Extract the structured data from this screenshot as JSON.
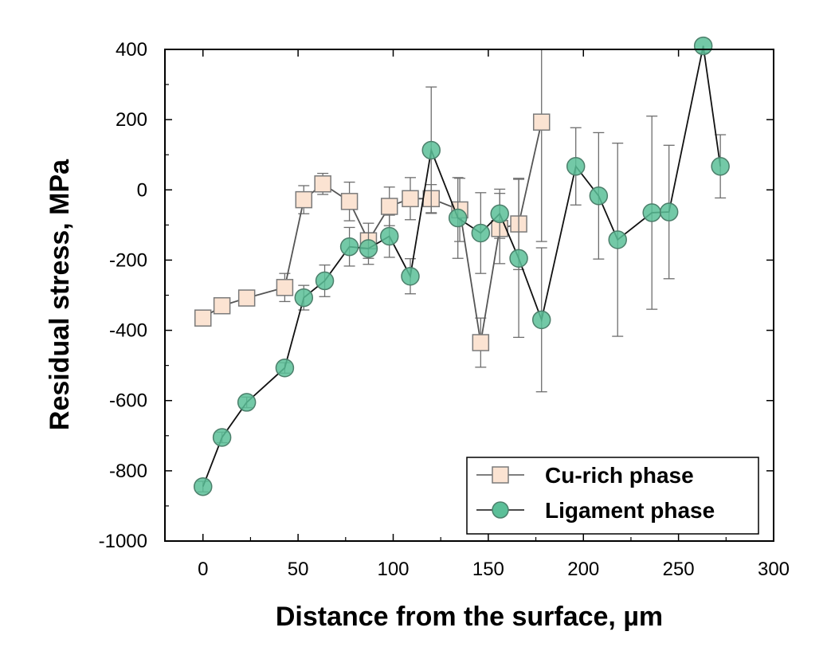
{
  "chart_data": {
    "type": "scatter",
    "xlabel": "Distance from the surface, µm",
    "ylabel": "Residual stress, MPa",
    "xlim": [
      -20,
      300
    ],
    "ylim": [
      -1000,
      400
    ],
    "xticks": [
      0,
      50,
      100,
      150,
      200,
      250,
      300
    ],
    "yticks": [
      -1000,
      -800,
      -600,
      -400,
      -200,
      0,
      200,
      400
    ],
    "legend_position": "bottom-right",
    "grid": false,
    "series": [
      {
        "name": "Cu-rich phase",
        "marker": "square",
        "color": "#fbe3d2",
        "edge_color": "#7a7a7a",
        "line_color": "#555555",
        "x": [
          0,
          10,
          23,
          43,
          53,
          63,
          77,
          87,
          98,
          109,
          120,
          135,
          146,
          156,
          166,
          178
        ],
        "y": [
          -365,
          -330,
          -308,
          -278,
          -28,
          17,
          -33,
          -145,
          -47,
          -25,
          -25,
          -57,
          -435,
          -110,
          -97,
          193
        ],
        "err": [
          18,
          20,
          22,
          40,
          40,
          30,
          55,
          50,
          55,
          60,
          40,
          90,
          70,
          100,
          130,
          340
        ]
      },
      {
        "name": "Ligament phase",
        "marker": "circle",
        "color": "#5bbf98",
        "edge_color": "#4c7f6b",
        "line_color": "#111111",
        "x": [
          0,
          10,
          23,
          43,
          53,
          64,
          77,
          87,
          98,
          109,
          120,
          134,
          146,
          156,
          166,
          178,
          196,
          208,
          218,
          236,
          245,
          263,
          272
        ],
        "y": [
          -845,
          -705,
          -605,
          -507,
          -307,
          -259,
          -162,
          -167,
          -132,
          -246,
          113,
          -80,
          -123,
          -68,
          -195,
          -370,
          67,
          -17,
          -142,
          -65,
          -63,
          410,
          67
        ],
        "err": [
          15,
          15,
          15,
          15,
          35,
          45,
          55,
          45,
          60,
          50,
          180,
          115,
          115,
          70,
          225,
          205,
          110,
          180,
          275,
          275,
          190,
          20,
          90
        ]
      }
    ]
  }
}
